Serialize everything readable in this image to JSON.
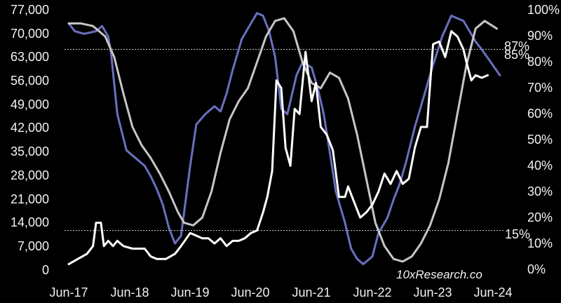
{
  "chart_data": {
    "type": "line",
    "x_ticks": [
      "Jun-17",
      "Jun-18",
      "Jun-19",
      "Jun-20",
      "Jun-21",
      "Jun-22",
      "Jun-23",
      "Jun-24"
    ],
    "y_left_ticks": [
      "77,000",
      "70,000",
      "63,000",
      "56,000",
      "49,000",
      "42,000",
      "35,000",
      "28,000",
      "21,000",
      "14,000",
      "7,000",
      "0"
    ],
    "y_right_ticks": [
      "100%",
      "90%",
      "80%",
      "70%",
      "60%",
      "50%",
      "40%",
      "30%",
      "20%",
      "10%",
      "0%"
    ],
    "ylim_left": [
      0,
      77000
    ],
    "ylim_right": [
      0,
      100
    ],
    "reference_lines": [
      {
        "value": 85,
        "label": "85%"
      },
      {
        "value": 15,
        "label": "15%"
      }
    ],
    "end_labels": [
      "87%",
      "85%"
    ],
    "watermark": "10xResearch.co",
    "colors": {
      "background": "#000000",
      "series_blue": "#6a6fc0",
      "series_gray": "#c6c6c6",
      "series_white": "#ffffff",
      "reference": "#d9d9d9",
      "text": "#f2f2f2"
    },
    "series": [
      {
        "axis": "right",
        "x": [
          2017.45,
          2017.55,
          2017.7,
          2017.9,
          2018.0,
          2018.1,
          2018.15,
          2018.25,
          2018.4,
          2018.55,
          2018.7,
          2018.8,
          2018.9,
          2019.0,
          2019.1,
          2019.2,
          2019.3,
          2019.45,
          2019.55,
          2019.7,
          2019.85,
          2019.95,
          2020.05,
          2020.15,
          2020.3,
          2020.45,
          2020.55,
          2020.65,
          2020.75,
          2020.85,
          2020.95,
          2021.05,
          2021.2,
          2021.3,
          2021.45,
          2021.55,
          2021.65,
          2021.75,
          2021.85,
          2022.0,
          2022.1,
          2022.2,
          2022.3,
          2022.45,
          2022.55,
          2022.7,
          2022.8,
          2022.9,
          2023.0,
          2023.15,
          2023.3,
          2023.45,
          2023.6,
          2023.75,
          2023.85,
          2023.95,
          2024.05,
          2024.15,
          2024.25,
          2024.4,
          2024.55
        ],
        "values": [
          95,
          92,
          91,
          92,
          94,
          90,
          83,
          60,
          46,
          43,
          40,
          36,
          31,
          25,
          16,
          10,
          13,
          40,
          56,
          60,
          63,
          61,
          68,
          77,
          89,
          95,
          99,
          98,
          92,
          82,
          62,
          60,
          75,
          80,
          78,
          70,
          60,
          45,
          30,
          18,
          8,
          4,
          2,
          5,
          14,
          20,
          27,
          33,
          41,
          55,
          67,
          79,
          90,
          98,
          97,
          96,
          92,
          88,
          85,
          80,
          75
        ]
      },
      {
        "axis": "right",
        "x": [
          2017.45,
          2017.65,
          2017.85,
          2018.05,
          2018.2,
          2018.35,
          2018.5,
          2018.65,
          2018.8,
          2018.95,
          2019.1,
          2019.25,
          2019.35,
          2019.5,
          2019.65,
          2019.8,
          2019.95,
          2020.1,
          2020.25,
          2020.4,
          2020.55,
          2020.7,
          2020.85,
          2021.0,
          2021.15,
          2021.3,
          2021.45,
          2021.6,
          2021.75,
          2021.9,
          2022.05,
          2022.2,
          2022.35,
          2022.5,
          2022.65,
          2022.8,
          2022.95,
          2023.1,
          2023.25,
          2023.4,
          2023.55,
          2023.7,
          2023.85,
          2024.0,
          2024.15,
          2024.3,
          2024.5
        ],
        "values": [
          95,
          95,
          94,
          90,
          82,
          68,
          55,
          48,
          43,
          37,
          30,
          22,
          18,
          17,
          20,
          30,
          45,
          58,
          65,
          70,
          80,
          90,
          96,
          97,
          92,
          80,
          72,
          70,
          76,
          74,
          66,
          52,
          35,
          18,
          9,
          4,
          3,
          5,
          10,
          17,
          27,
          41,
          60,
          79,
          93,
          96,
          93
        ]
      },
      {
        "axis": "right",
        "x": [
          2017.45,
          2017.6,
          2017.75,
          2017.85,
          2017.9,
          2017.98,
          2018.03,
          2018.1,
          2018.18,
          2018.25,
          2018.35,
          2018.5,
          2018.7,
          2018.8,
          2018.9,
          2019.05,
          2019.2,
          2019.3,
          2019.45,
          2019.55,
          2019.65,
          2019.75,
          2019.85,
          2019.95,
          2020.05,
          2020.15,
          2020.25,
          2020.35,
          2020.45,
          2020.55,
          2020.65,
          2020.72,
          2020.8,
          2020.87,
          2020.95,
          2021.02,
          2021.1,
          2021.17,
          2021.25,
          2021.35,
          2021.45,
          2021.52,
          2021.6,
          2021.7,
          2021.8,
          2021.9,
          2022.0,
          2022.05,
          2022.15,
          2022.25,
          2022.35,
          2022.45,
          2022.55,
          2022.65,
          2022.75,
          2022.85,
          2022.95,
          2023.05,
          2023.15,
          2023.25,
          2023.35,
          2023.45,
          2023.55,
          2023.65,
          2023.75,
          2023.85,
          2023.95,
          2024.0,
          2024.08,
          2024.15,
          2024.25,
          2024.35
        ],
        "values": [
          2,
          4,
          6,
          9,
          18,
          18,
          9,
          11,
          9,
          11,
          9,
          8,
          8,
          5,
          4,
          4,
          6,
          9,
          14,
          13,
          12,
          12,
          10,
          12,
          9,
          11,
          11,
          12,
          14,
          15,
          22,
          28,
          38,
          73,
          70,
          47,
          40,
          62,
          60,
          84,
          65,
          72,
          55,
          52,
          46,
          28,
          28,
          32,
          26,
          20,
          22,
          25,
          30,
          37,
          33,
          38,
          33,
          35,
          47,
          55,
          55,
          87,
          88,
          82,
          92,
          90,
          85,
          80,
          73,
          75,
          74,
          75
        ]
      }
    ]
  }
}
